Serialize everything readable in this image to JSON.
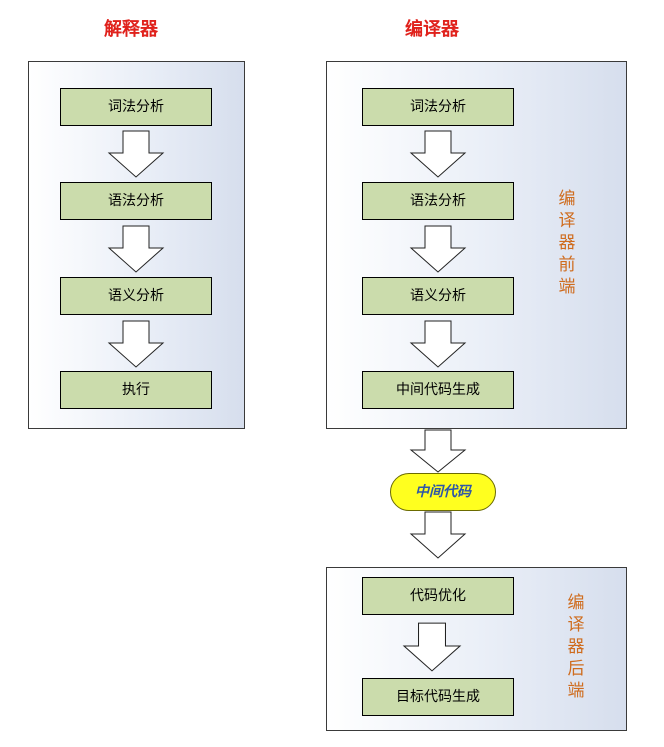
{
  "interpreter": {
    "title": "解释器",
    "steps": [
      "词法分析",
      "语法分析",
      "语义分析",
      "执行"
    ]
  },
  "compiler": {
    "title": "编译器",
    "frontend": {
      "label": "编译器前端",
      "steps": [
        "词法分析",
        "语法分析",
        "语义分析",
        "中间代码生成"
      ]
    },
    "intermediate": "中间代码",
    "backend": {
      "label": "编译器后端",
      "steps": [
        "代码优化",
        "目标代码生成"
      ]
    }
  },
  "colors": {
    "title": "#e0221c",
    "box_fill": "#cbdcac",
    "side_label": "#cf6c1e",
    "oval_fill": "#ffff1f",
    "oval_text": "#2e56a8"
  }
}
